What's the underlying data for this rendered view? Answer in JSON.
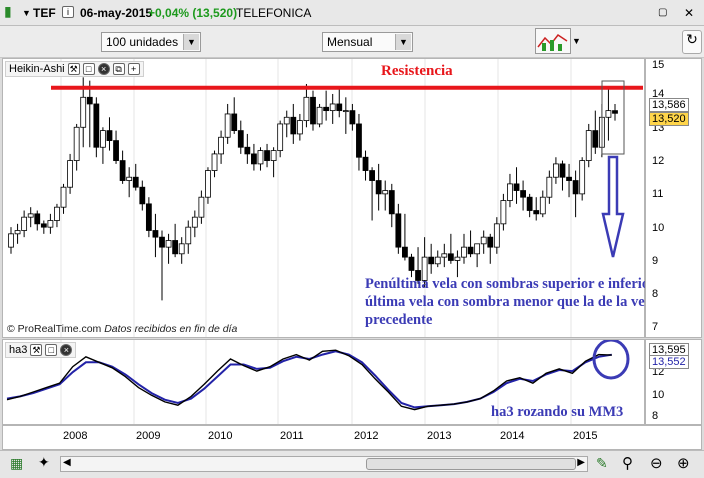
{
  "topbar": {
    "symbol": "TEF",
    "date": "06-may-2015",
    "change": "+0,04% (13,520)",
    "name": "TELEFONICA"
  },
  "toolbar": {
    "units_value": "100 unidades",
    "period_value": "Mensual"
  },
  "main_pane": {
    "title": "Heikin-Ashi",
    "watermark": "© ProRealTime.com",
    "watermark_note": "Datos recibidos en fin de día",
    "resistance_label": "Resistencia",
    "annotation": "Penúltima vela con sombras superior e inferior, y última vela con sombra menor que la de la vela precedente",
    "y_ticks": [
      "15",
      "14",
      "13",
      "12",
      "11",
      "10",
      "9",
      "8",
      "7"
    ],
    "price_tag_1": "13,586",
    "price_tag_2": "13,520"
  },
  "indicator_pane": {
    "title": "ha3",
    "y_ticks": [
      "12",
      "10",
      "8"
    ],
    "value_1": "13,595",
    "value_2": "13,552",
    "annotation": "ha3 rozando su MM3"
  },
  "x_axis": [
    "2008",
    "2009",
    "2010",
    "2011",
    "2012",
    "2013",
    "2014",
    "2015"
  ],
  "colors": {
    "resistance": "#e8161b",
    "annotation_text": "#3b3bb5",
    "ma_line": "#2323a8",
    "bull_fill": "#ffffff",
    "bear_fill": "#000000"
  },
  "chart_data": {
    "type": "candlestick",
    "y_range": [
      7,
      15
    ],
    "resistance_level": 14.3,
    "candles": [
      [
        9.5,
        10.1,
        9.3,
        9.9
      ],
      [
        9.9,
        10.2,
        9.6,
        10.0
      ],
      [
        10.0,
        10.6,
        9.8,
        10.4
      ],
      [
        10.4,
        10.7,
        10.1,
        10.5
      ],
      [
        10.5,
        10.6,
        10.0,
        10.2
      ],
      [
        10.2,
        10.3,
        9.9,
        10.1
      ],
      [
        10.1,
        10.5,
        9.9,
        10.3
      ],
      [
        10.3,
        10.8,
        10.1,
        10.7
      ],
      [
        10.7,
        11.4,
        10.5,
        11.3
      ],
      [
        11.3,
        12.3,
        11.1,
        12.1
      ],
      [
        12.1,
        13.2,
        11.8,
        13.1
      ],
      [
        13.1,
        14.6,
        12.5,
        14.0
      ],
      [
        14.0,
        14.5,
        12.5,
        13.8
      ],
      [
        13.8,
        14.0,
        12.2,
        12.5
      ],
      [
        12.5,
        13.1,
        12.0,
        13.0
      ],
      [
        13.0,
        13.4,
        12.4,
        12.7
      ],
      [
        12.7,
        13.0,
        12.0,
        12.1
      ],
      [
        12.1,
        12.4,
        11.4,
        11.5
      ],
      [
        11.5,
        11.9,
        11.0,
        11.6
      ],
      [
        11.6,
        12.0,
        11.2,
        11.3
      ],
      [
        11.3,
        11.5,
        10.6,
        10.8
      ],
      [
        10.8,
        11.0,
        9.8,
        10.0
      ],
      [
        10.0,
        10.5,
        9.2,
        9.8
      ],
      [
        9.8,
        10.0,
        7.9,
        9.5
      ],
      [
        9.5,
        9.9,
        9.0,
        9.7
      ],
      [
        9.7,
        10.2,
        9.2,
        9.3
      ],
      [
        9.3,
        9.8,
        9.0,
        9.6
      ],
      [
        9.6,
        10.3,
        9.3,
        10.1
      ],
      [
        10.1,
        10.6,
        9.8,
        10.4
      ],
      [
        10.4,
        11.2,
        10.2,
        11.0
      ],
      [
        11.0,
        11.9,
        10.8,
        11.8
      ],
      [
        11.8,
        12.4,
        11.6,
        12.3
      ],
      [
        12.3,
        13.0,
        12.0,
        12.8
      ],
      [
        12.8,
        13.8,
        12.6,
        13.5
      ],
      [
        13.5,
        14.0,
        12.9,
        13.0
      ],
      [
        13.0,
        13.3,
        12.3,
        12.5
      ],
      [
        12.5,
        12.9,
        12.0,
        12.3
      ],
      [
        12.3,
        12.6,
        11.8,
        12.0
      ],
      [
        12.0,
        12.5,
        11.8,
        12.4
      ],
      [
        12.4,
        12.6,
        11.9,
        12.1
      ],
      [
        12.1,
        12.5,
        11.6,
        12.4
      ],
      [
        12.4,
        13.3,
        12.2,
        13.2
      ],
      [
        13.2,
        13.6,
        12.8,
        13.4
      ],
      [
        13.4,
        13.8,
        12.6,
        12.9
      ],
      [
        12.9,
        13.5,
        12.7,
        13.3
      ],
      [
        13.3,
        14.4,
        13.1,
        14.0
      ],
      [
        14.0,
        14.2,
        13.0,
        13.2
      ],
      [
        13.2,
        13.8,
        13.1,
        13.7
      ],
      [
        13.7,
        14.2,
        13.3,
        13.6
      ],
      [
        13.6,
        14.1,
        13.2,
        13.8
      ],
      [
        13.8,
        14.3,
        13.4,
        13.6
      ],
      [
        13.6,
        14.0,
        12.9,
        13.6
      ],
      [
        13.6,
        13.8,
        13.0,
        13.2
      ],
      [
        13.2,
        13.5,
        11.8,
        12.2
      ],
      [
        12.2,
        12.4,
        11.5,
        11.8
      ],
      [
        11.8,
        11.9,
        10.3,
        11.5
      ],
      [
        11.5,
        12.0,
        10.6,
        11.1
      ],
      [
        11.1,
        11.5,
        10.6,
        11.2
      ],
      [
        11.2,
        11.4,
        10.1,
        10.5
      ],
      [
        10.5,
        10.8,
        9.3,
        9.5
      ],
      [
        9.5,
        10.5,
        9.1,
        9.2
      ],
      [
        9.2,
        9.3,
        8.6,
        8.8
      ],
      [
        8.8,
        9.5,
        8.4,
        8.5
      ],
      [
        8.5,
        9.8,
        8.3,
        9.2
      ],
      [
        9.2,
        9.6,
        8.7,
        9.0
      ],
      [
        9.0,
        9.4,
        8.9,
        9.2
      ],
      [
        9.2,
        9.6,
        8.9,
        9.3
      ],
      [
        9.3,
        9.9,
        9.0,
        9.1
      ],
      [
        9.1,
        9.4,
        8.6,
        9.2
      ],
      [
        9.2,
        9.9,
        9.0,
        9.5
      ],
      [
        9.5,
        10.0,
        9.2,
        9.3
      ],
      [
        9.3,
        9.6,
        8.9,
        9.6
      ],
      [
        9.6,
        10.0,
        9.3,
        9.8
      ],
      [
        9.8,
        9.9,
        9.0,
        9.5
      ],
      [
        9.5,
        10.4,
        9.3,
        10.2
      ],
      [
        10.2,
        11.1,
        10.0,
        10.9
      ],
      [
        10.9,
        11.7,
        10.7,
        11.4
      ],
      [
        11.4,
        11.9,
        10.8,
        11.2
      ],
      [
        11.2,
        11.5,
        10.6,
        11.0
      ],
      [
        11.0,
        11.1,
        10.4,
        10.6
      ],
      [
        10.6,
        11.0,
        10.3,
        10.5
      ],
      [
        10.5,
        11.2,
        10.4,
        11.0
      ],
      [
        11.0,
        11.8,
        10.8,
        11.6
      ],
      [
        11.6,
        12.2,
        11.4,
        12.0
      ],
      [
        12.0,
        12.1,
        11.2,
        11.6
      ],
      [
        11.6,
        12.0,
        11.0,
        11.5
      ],
      [
        11.5,
        11.8,
        10.4,
        11.1
      ],
      [
        11.1,
        12.2,
        10.9,
        12.1
      ],
      [
        12.1,
        13.2,
        11.9,
        13.0
      ],
      [
        13.0,
        13.6,
        12.3,
        12.5
      ],
      [
        12.5,
        13.8,
        12.2,
        13.4
      ],
      [
        13.4,
        14.3,
        12.7,
        13.6
      ],
      [
        13.6,
        13.8,
        13.3,
        13.52
      ]
    ],
    "ha3": [
      9.5,
      9.8,
      10.2,
      10.6,
      11.0,
      12.5,
      13.4,
      12.9,
      12.4,
      11.6,
      10.6,
      9.9,
      9.3,
      9.0,
      9.8,
      10.9,
      12.1,
      13.2,
      12.6,
      12.1,
      12.5,
      13.2,
      13.6,
      13.1,
      13.9,
      14.0,
      13.5,
      12.7,
      11.4,
      10.2,
      8.9,
      8.6,
      8.9,
      9.0,
      9.1,
      9.3,
      9.6,
      10.3,
      11.2,
      11.5,
      11.0,
      11.9,
      12.3,
      11.9,
      13.0,
      13.6,
      13.55
    ],
    "ha3_ma": [
      9.6,
      9.8,
      10.1,
      10.5,
      10.9,
      12.0,
      12.9,
      12.9,
      12.5,
      11.8,
      10.9,
      10.1,
      9.5,
      9.2,
      9.6,
      10.5,
      11.6,
      12.7,
      12.7,
      12.3,
      12.4,
      13.0,
      13.4,
      13.2,
      13.6,
      13.9,
      13.6,
      12.9,
      11.7,
      10.4,
      9.2,
      8.8,
      8.9,
      9.0,
      9.1,
      9.3,
      9.6,
      10.2,
      11.0,
      11.4,
      11.2,
      11.8,
      12.2,
      12.1,
      12.9,
      13.4,
      13.595
    ]
  }
}
